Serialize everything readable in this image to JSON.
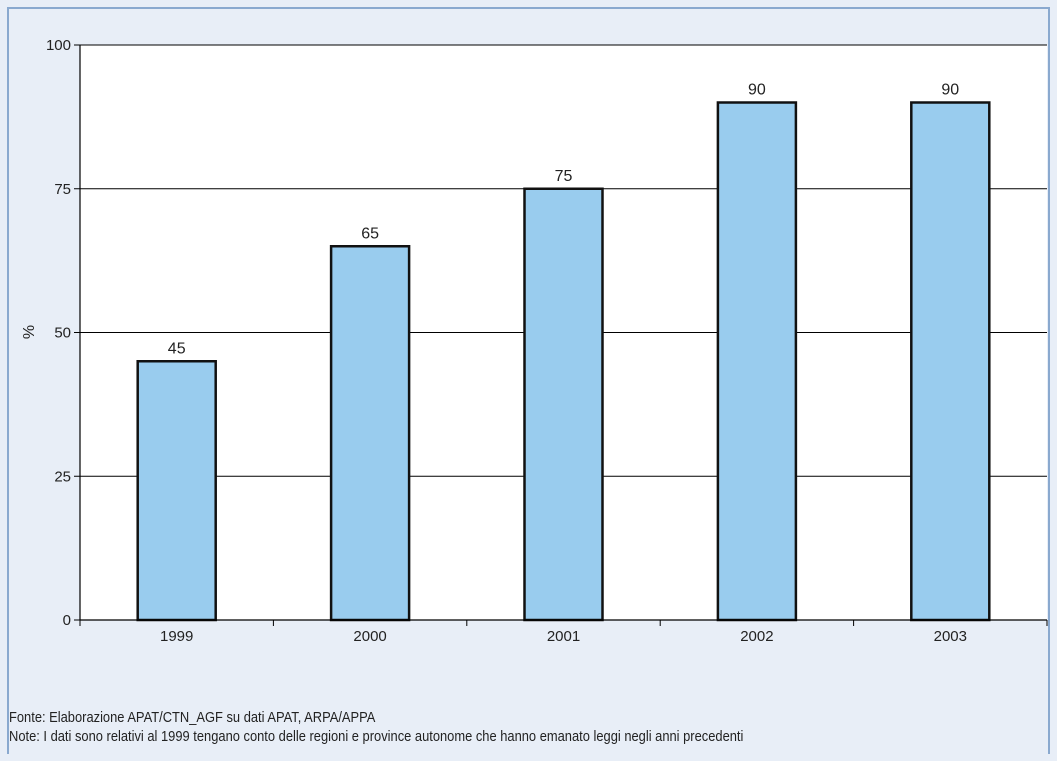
{
  "chart_data": {
    "type": "bar",
    "categories": [
      "1999",
      "2000",
      "2001",
      "2002",
      "2003"
    ],
    "values": [
      45,
      65,
      75,
      90,
      90
    ],
    "data_labels": [
      "45",
      "65",
      "75",
      "90",
      "90"
    ],
    "ylabel": "%",
    "ylim": [
      0,
      100
    ],
    "yticks": [
      "0",
      "25",
      "50",
      "75",
      "100"
    ],
    "grid": true,
    "bar_color": "#99ccee",
    "bar_edge_color": "#111111"
  },
  "notes": {
    "source": "Fonte: Elaborazione APAT/CTN_AGF su dati APAT, ARPA/APPA",
    "note": "Note: I dati sono relativi al 1999 tengano conto delle regioni e province autonome che hanno emanato leggi negli anni precedenti"
  }
}
